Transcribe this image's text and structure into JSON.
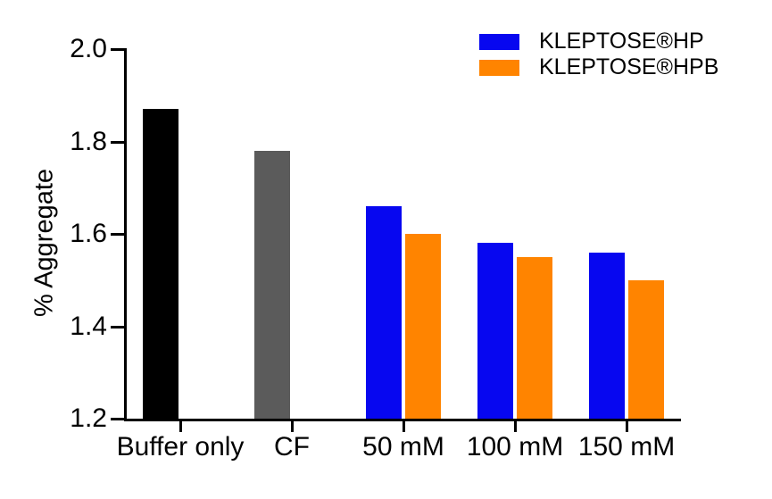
{
  "chart_data": {
    "type": "bar",
    "title": "",
    "xlabel": "",
    "ylabel": "% Aggregate",
    "ylim": [
      1.2,
      2.0
    ],
    "ytick_labels": [
      "2.0",
      "1.8",
      "1.6",
      "1.4",
      "1.2"
    ],
    "ytick_values": [
      2.0,
      1.8,
      1.6,
      1.4,
      1.2
    ],
    "categories": [
      "Buffer only",
      "CF",
      "50 mM",
      "100 mM",
      "150 mM"
    ],
    "series": [
      {
        "name": "KLEPTOSE®HP",
        "color": "#0707F0",
        "values": [
          null,
          null,
          1.66,
          1.58,
          1.56
        ]
      },
      {
        "name": "KLEPTOSE®HPB",
        "color": "#FF8400",
        "values": [
          null,
          null,
          1.6,
          1.55,
          1.5
        ]
      }
    ],
    "control_bars": [
      {
        "category": "Buffer only",
        "value": 1.87,
        "color": "#000000"
      },
      {
        "category": "CF",
        "value": 1.78,
        "color": "#5B5B5B"
      }
    ],
    "grid": false,
    "legend_position": "top-right",
    "axis_color": "#000000",
    "background_color": "#FFFFFF"
  }
}
